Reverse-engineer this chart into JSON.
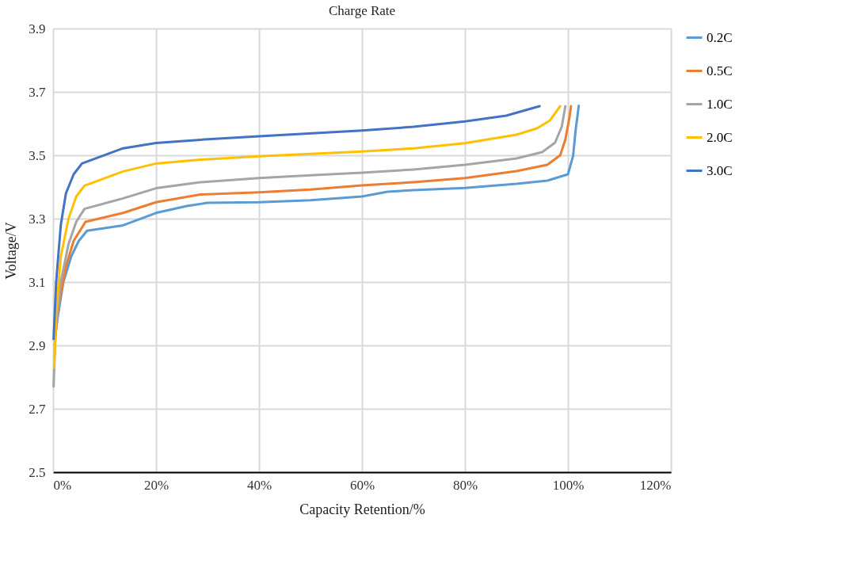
{
  "chart_data": {
    "type": "line",
    "title": "Charge Rate",
    "xlabel": "Capacity Retention/%",
    "ylabel": "Voltage/V",
    "xlim": [
      0,
      120
    ],
    "xticks": [
      {
        "value": 0,
        "label": "0%"
      },
      {
        "value": 20,
        "label": "20%"
      },
      {
        "value": 40,
        "label": "40%"
      },
      {
        "value": 60,
        "label": "60%"
      },
      {
        "value": 80,
        "label": "80%"
      },
      {
        "value": 100,
        "label": "100%"
      },
      {
        "value": 120,
        "label": "120%"
      }
    ],
    "ylim": [
      2.5,
      3.9
    ],
    "yticks": [
      2.5,
      2.7,
      2.9,
      3.1,
      3.3,
      3.5,
      3.7,
      3.9
    ],
    "grid": true,
    "legend": "right",
    "marker": "none",
    "line_style": "solid",
    "series": [
      {
        "name": "0.2C",
        "color": "#5b9bd5",
        "x": [
          0.3,
          1,
          2,
          3.5,
          5,
          6.6,
          13.6,
          20,
          26,
          30,
          40,
          50,
          60,
          65,
          70,
          80,
          90,
          96,
          99,
          100,
          101,
          101.5,
          102.1
        ],
        "values": [
          2.92,
          3.0,
          3.1,
          3.18,
          3.23,
          3.262,
          3.279,
          3.318,
          3.34,
          3.35,
          3.352,
          3.358,
          3.37,
          3.385,
          3.39,
          3.397,
          3.41,
          3.42,
          3.435,
          3.44,
          3.498,
          3.58,
          3.656
        ]
      },
      {
        "name": "0.5C",
        "color": "#ed7d31",
        "x": [
          0.3,
          1,
          2.5,
          4,
          6.3,
          13.6,
          20,
          28.6,
          40,
          50,
          60,
          70,
          80,
          90,
          96,
          98.5,
          99.5,
          100.3,
          100.6
        ],
        "values": [
          2.9,
          3.02,
          3.15,
          3.23,
          3.29,
          3.318,
          3.352,
          3.376,
          3.383,
          3.392,
          3.405,
          3.415,
          3.428,
          3.45,
          3.47,
          3.5,
          3.55,
          3.62,
          3.655
        ]
      },
      {
        "name": "1.0C",
        "color": "#a5a5a5",
        "x": [
          0.1,
          0.5,
          1.5,
          3,
          4.5,
          6.1,
          13.6,
          20,
          28.6,
          40,
          50,
          60,
          70,
          80,
          90,
          95,
          97.5,
          98.8,
          99.5
        ],
        "values": [
          2.77,
          2.95,
          3.1,
          3.22,
          3.29,
          3.331,
          3.364,
          3.396,
          3.415,
          3.428,
          3.437,
          3.445,
          3.455,
          3.47,
          3.49,
          3.51,
          3.54,
          3.59,
          3.655
        ]
      },
      {
        "name": "2.0C",
        "color": "#ffc000",
        "x": [
          0.2,
          0.6,
          1.5,
          3,
          4.5,
          6.1,
          13.6,
          20,
          28.6,
          40,
          60,
          70,
          80,
          90,
          94,
          96.5,
          98.5
        ],
        "values": [
          2.83,
          3.0,
          3.18,
          3.3,
          3.37,
          3.404,
          3.449,
          3.474,
          3.486,
          3.497,
          3.512,
          3.522,
          3.538,
          3.565,
          3.585,
          3.61,
          3.655
        ]
      },
      {
        "name": "3.0C",
        "color": "#4472c4",
        "x": [
          0.1,
          0.6,
          1.5,
          2.5,
          4,
          5.6,
          13.6,
          20,
          28.6,
          40,
          60,
          70,
          80,
          88,
          94.5
        ],
        "values": [
          2.92,
          3.1,
          3.28,
          3.38,
          3.44,
          3.474,
          3.522,
          3.539,
          3.549,
          3.56,
          3.578,
          3.59,
          3.607,
          3.625,
          3.655
        ]
      }
    ]
  }
}
